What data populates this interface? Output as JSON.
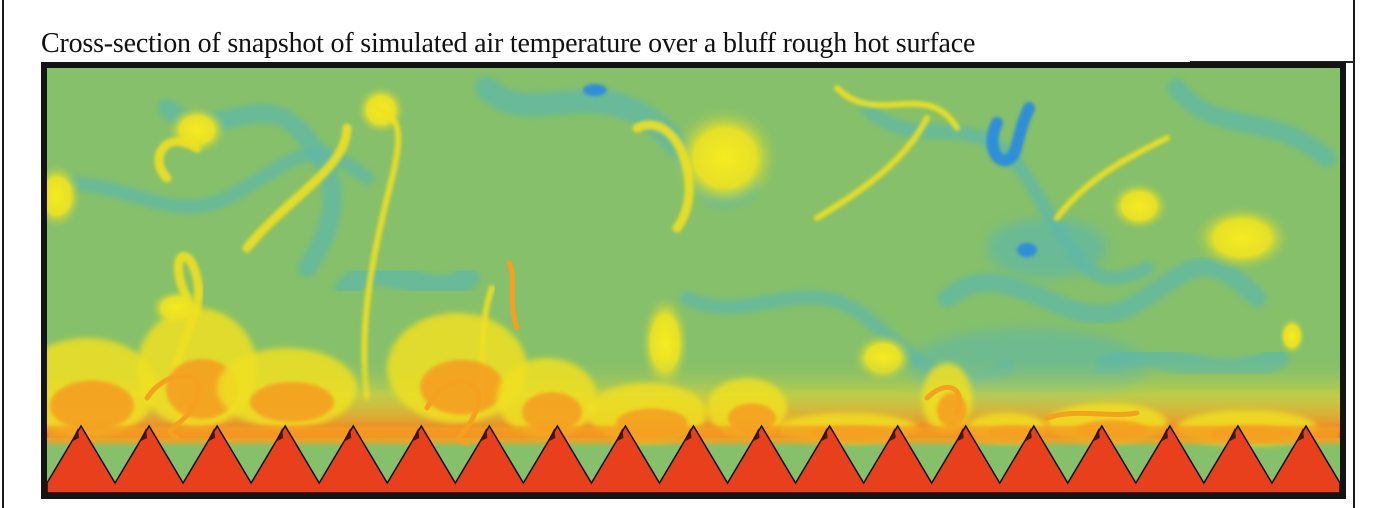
{
  "figure": {
    "caption": "Cross-section of snapshot of simulated air temperature over a bluff rough hot surface"
  },
  "colors": {
    "ambient_air": "#86c06a",
    "cool_air": "#5fb8a8",
    "cold_core": "#2f8fd8",
    "warm_air": "#f0e020",
    "hot_air": "#f5a020",
    "hottest_air": "#e8401c",
    "surface": "#e8401c",
    "frame": "#141414"
  },
  "surface": {
    "shape": "triangular-roughness-elements",
    "element_count": 19
  }
}
